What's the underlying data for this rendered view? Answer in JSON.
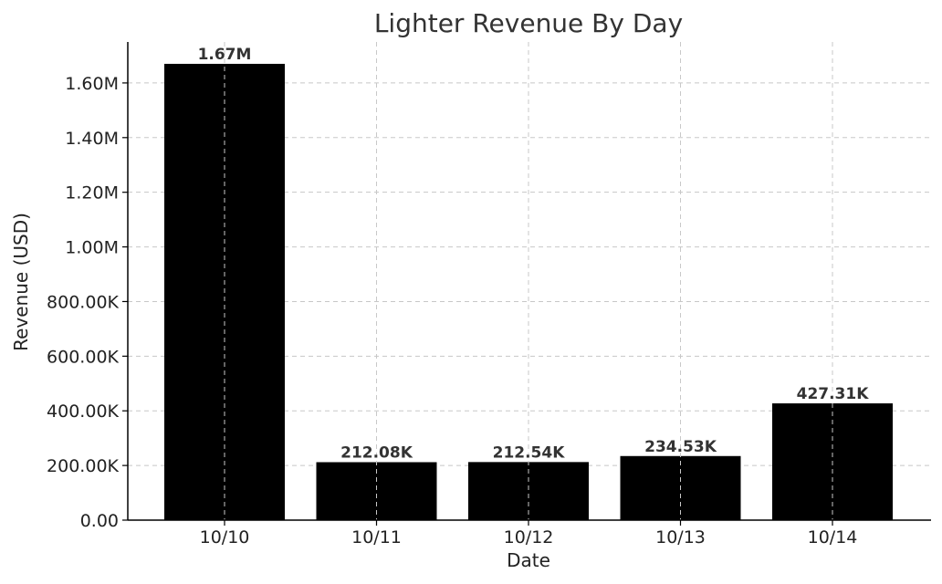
{
  "chart_data": {
    "type": "bar",
    "title": "Lighter Revenue By Day",
    "xlabel": "Date",
    "ylabel": "Revenue (USD)",
    "categories": [
      "10/10",
      "10/11",
      "10/12",
      "10/13",
      "10/14"
    ],
    "values": [
      1670000,
      212080,
      212540,
      234530,
      427310
    ],
    "value_labels": [
      "1.67M",
      "212.08K",
      "212.54K",
      "234.53K",
      "427.31K"
    ],
    "ylim": [
      0,
      1750000
    ],
    "yticks": [
      0,
      200000,
      400000,
      600000,
      800000,
      1000000,
      1200000,
      1400000,
      1600000
    ],
    "ytick_labels": [
      "0.00",
      "200.00K",
      "400.00K",
      "600.00K",
      "800.00K",
      "1.00M",
      "1.20M",
      "1.40M",
      "1.60M"
    ],
    "grid": true,
    "bar_color": "#000000"
  }
}
